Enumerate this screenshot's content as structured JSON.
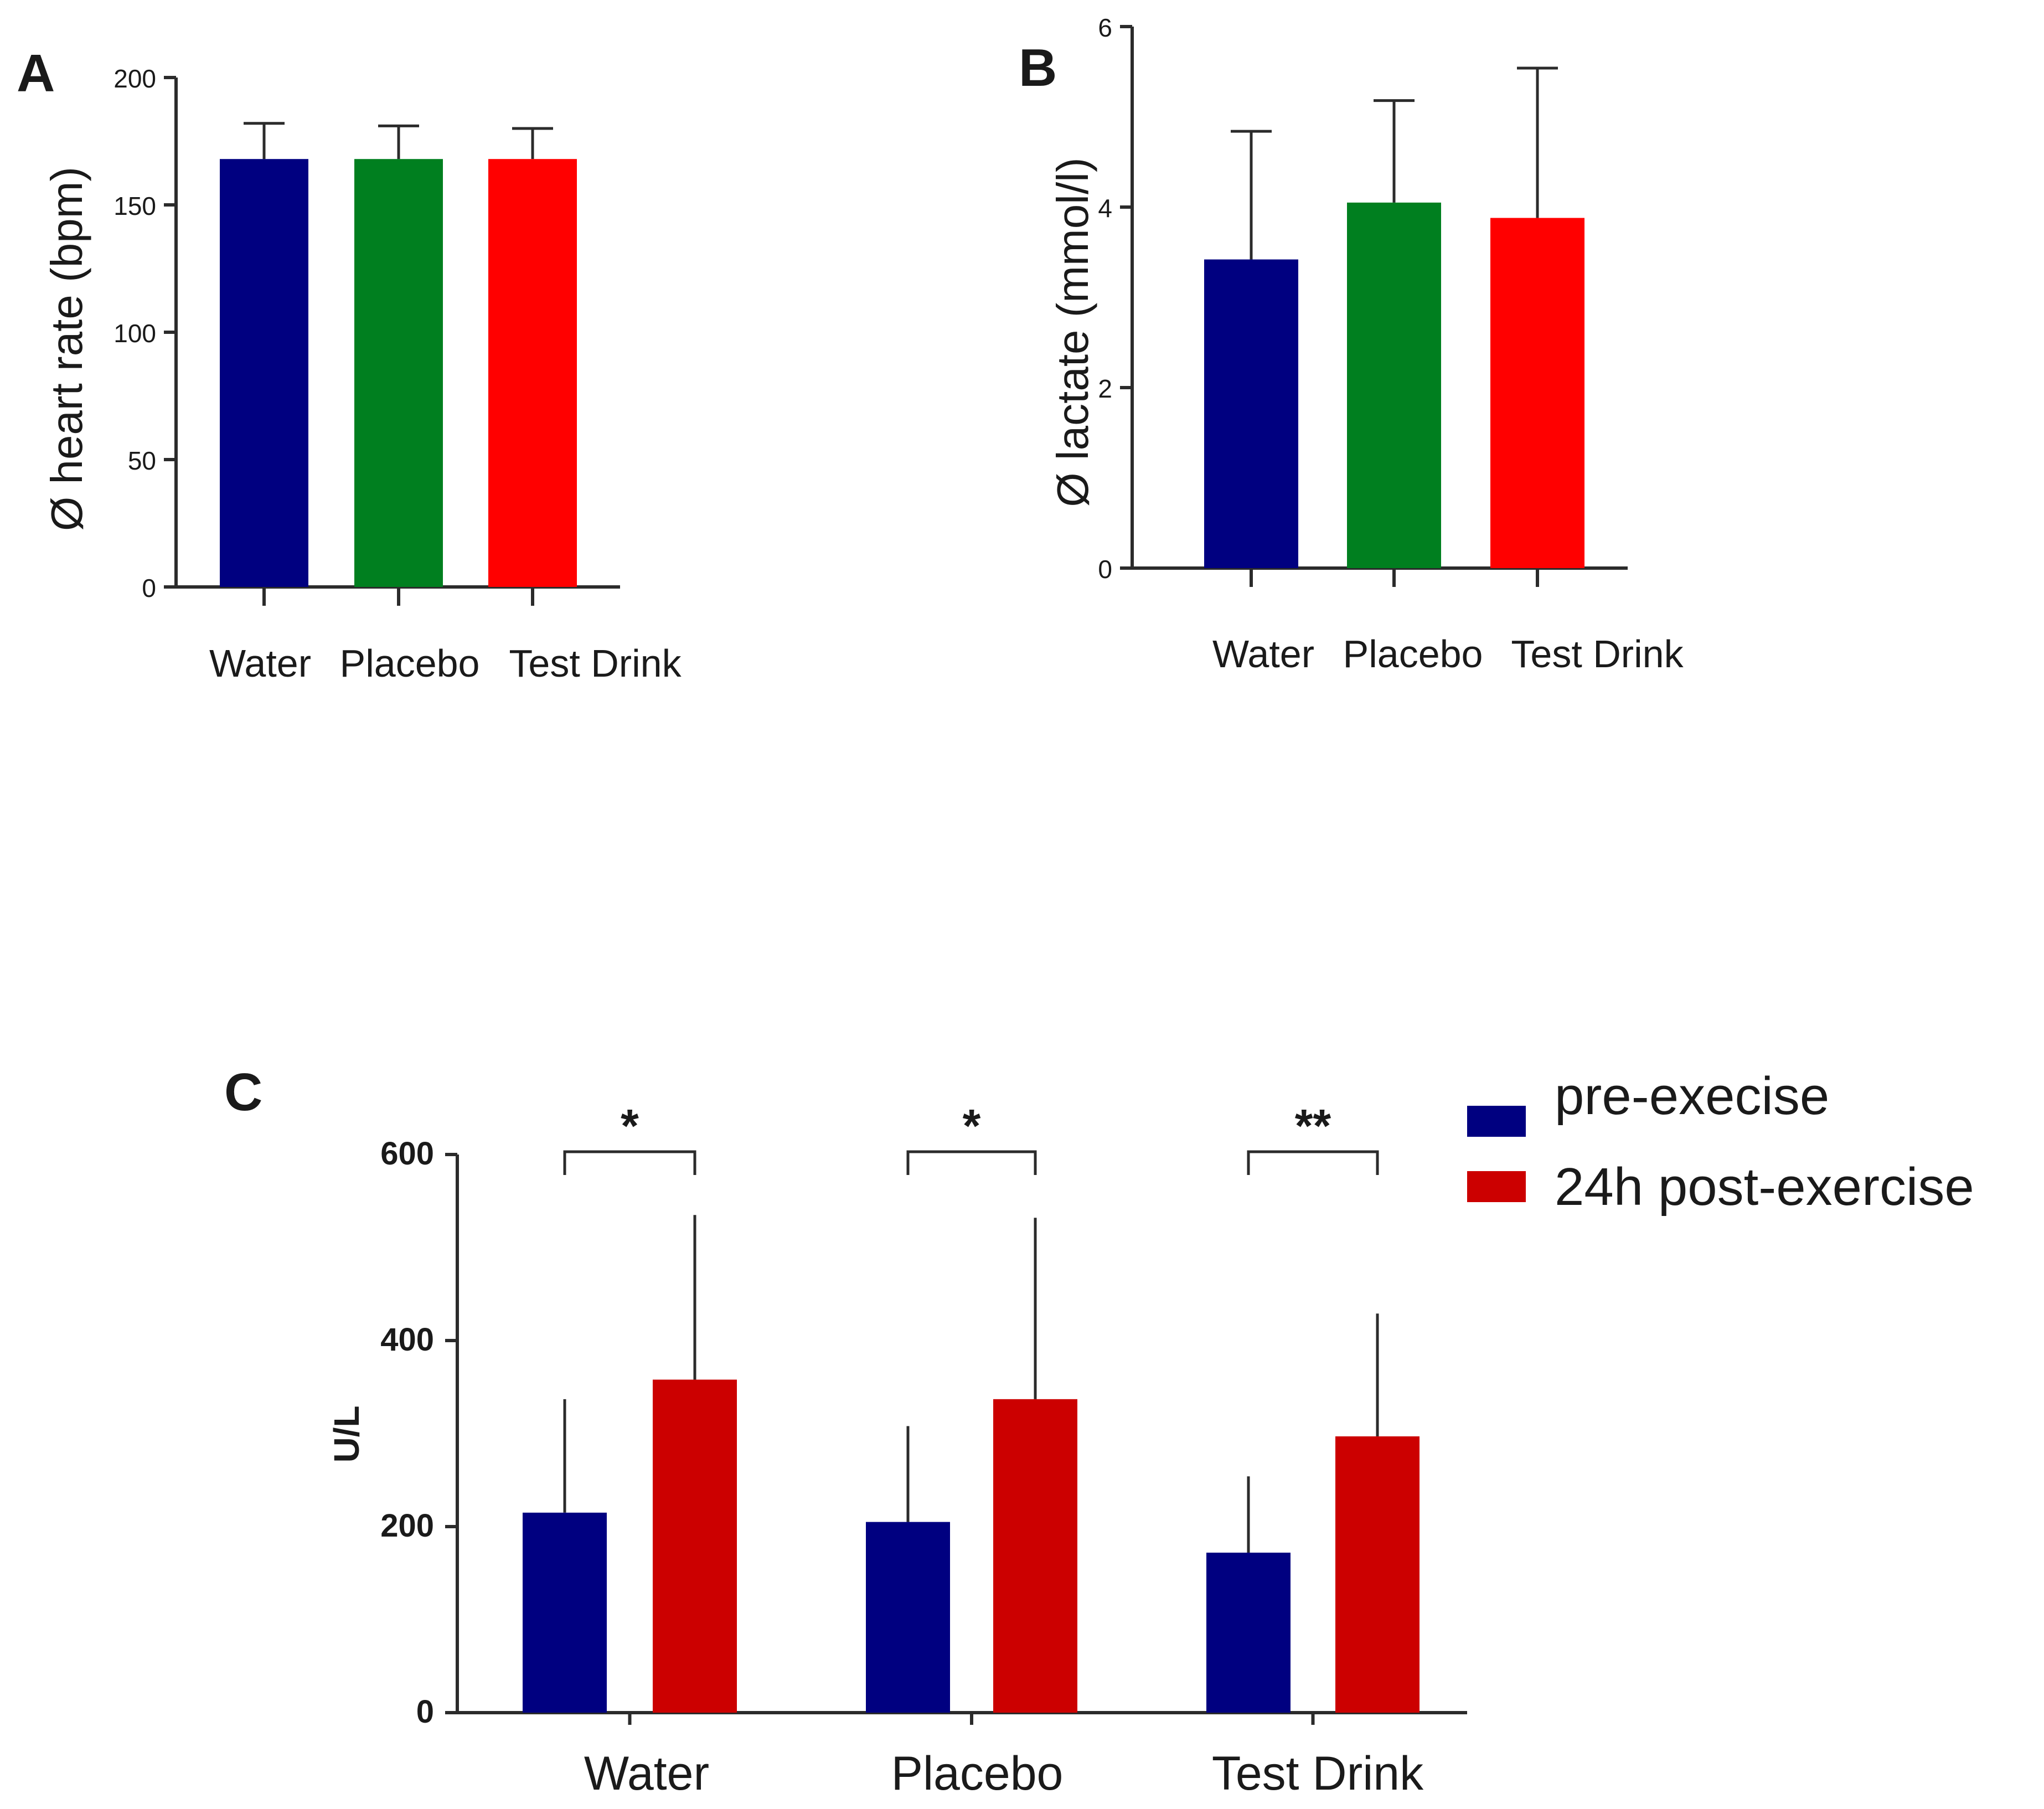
{
  "colors": {
    "water": "#000080",
    "placebo": "#007f1f",
    "test_drink": "#ff0000",
    "pre": "#000080",
    "post": "#cc0000",
    "axis": "#2b2b2b"
  },
  "chart_data": [
    {
      "panel": "A",
      "type": "bar",
      "ylabel": "Ø heart rate (bpm)",
      "xlabel": "",
      "categories": [
        "Water",
        "Placebo",
        "Test Drink"
      ],
      "values": [
        168,
        168,
        168
      ],
      "errors": [
        14,
        13,
        12
      ],
      "ylim": [
        0,
        200
      ],
      "yticks": [
        0,
        50,
        100,
        150,
        200
      ],
      "grid": false
    },
    {
      "panel": "B",
      "type": "bar",
      "ylabel": "Ø lactate (mmol/l)",
      "xlabel": "",
      "categories": [
        "Water",
        "Placebo",
        "Test Drink"
      ],
      "values": [
        3.42,
        4.05,
        3.88
      ],
      "errors": [
        1.42,
        1.13,
        1.66
      ],
      "ylim": [
        0,
        6
      ],
      "yticks": [
        0,
        2,
        4,
        6
      ],
      "grid": false
    },
    {
      "panel": "C",
      "type": "bar",
      "ylabel": "U/L",
      "xlabel": "",
      "categories": [
        "Water",
        "Placebo",
        "Test Drink"
      ],
      "series": [
        {
          "name": "pre-execise",
          "values": [
            215,
            205,
            172
          ],
          "errors": [
            122,
            103,
            82
          ]
        },
        {
          "name": "24h post-exercise",
          "values": [
            358,
            337,
            297
          ],
          "errors": [
            177,
            195,
            132
          ]
        }
      ],
      "significance": [
        "*",
        "*",
        "**"
      ],
      "ylim": [
        0,
        600
      ],
      "yticks": [
        0,
        200,
        400,
        600
      ],
      "legend_position": "top-right",
      "grid": false
    }
  ]
}
